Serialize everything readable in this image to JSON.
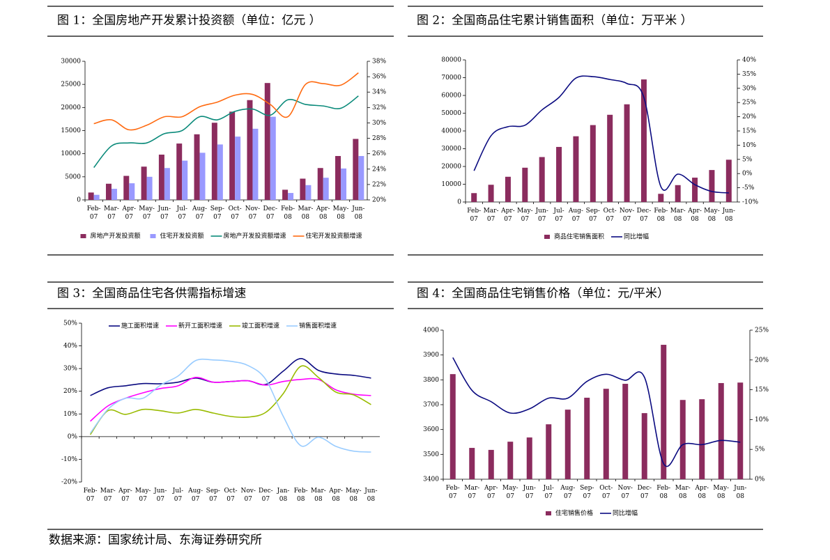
{
  "chart_data": [
    {
      "type": "combo",
      "title": "图 1：全国房地产开发累计投资额（单位：亿元 ）",
      "categories": [
        "Feb-07",
        "Mar-07",
        "Apr-07",
        "May-07",
        "Jun-07",
        "Jul-07",
        "Aug-07",
        "Sep-07",
        "Oct-07",
        "Nov-07",
        "Dec-07",
        "Feb-08",
        "Mar-08",
        "Apr-08",
        "May-08",
        "Jun-08"
      ],
      "ylim": [
        0,
        30000
      ],
      "yticks": [
        0,
        5000,
        10000,
        15000,
        20000,
        25000,
        30000
      ],
      "y2lim": [
        20,
        38
      ],
      "y2ticks": [
        {
          "value": 20,
          "label": "20%"
        },
        {
          "value": 22,
          "label": "22%"
        },
        {
          "value": 24,
          "label": "24%"
        },
        {
          "value": 26,
          "label": "26%"
        },
        {
          "value": 28,
          "label": "28%"
        },
        {
          "value": 30,
          "label": "30%"
        },
        {
          "value": 32,
          "label": "32%"
        },
        {
          "value": 34,
          "label": "34%"
        },
        {
          "value": 36,
          "label": "36%"
        },
        {
          "value": 38,
          "label": "38%"
        }
      ],
      "series": [
        {
          "name": "房地产开发投资额",
          "type": "bar",
          "color": "#8b2c5e",
          "values": [
            1600,
            3500,
            5200,
            7200,
            9800,
            12200,
            14200,
            16700,
            19100,
            21600,
            25300,
            2200,
            4600,
            6900,
            9500,
            13200
          ]
        },
        {
          "name": "住宅开发投资额",
          "type": "bar",
          "color": "#9999ff",
          "values": [
            1100,
            2400,
            3600,
            5000,
            6900,
            8500,
            10200,
            12000,
            13700,
            15400,
            18000,
            1500,
            3200,
            4800,
            6800,
            9500
          ]
        },
        {
          "name": "房地产开发投资额增速",
          "type": "line",
          "axis": "y2",
          "color": "#0a8a7a",
          "values": [
            24.2,
            27.0,
            27.4,
            27.4,
            28.6,
            29.0,
            30.8,
            30.4,
            31.5,
            31.8,
            31.0,
            33.0,
            32.4,
            32.2,
            31.9,
            33.5
          ]
        },
        {
          "name": "住宅开发投资额增速",
          "type": "line",
          "axis": "y2",
          "color": "#ff6a10",
          "values": [
            29.9,
            30.4,
            29.1,
            29.7,
            30.8,
            30.8,
            32.1,
            32.7,
            33.6,
            33.7,
            32.4,
            30.8,
            35.0,
            35.1,
            34.9,
            36.5
          ]
        }
      ]
    },
    {
      "type": "combo",
      "title": "图 2：全国商品住宅累计销售面积（单位：万平米 ）",
      "categories": [
        "Feb-07",
        "Mar-07",
        "Apr-07",
        "May-07",
        "Jun-07",
        "Jul-07",
        "Aug-07",
        "Sep-07",
        "Oct-07",
        "Nov-07",
        "Dec-07",
        "Feb-08",
        "Mar-08",
        "Apr-08",
        "May-08",
        "Jun-08"
      ],
      "ylim": [
        0,
        80000
      ],
      "yticks": [
        0,
        10000,
        20000,
        30000,
        40000,
        50000,
        60000,
        70000,
        80000
      ],
      "y2lim": [
        -10,
        40
      ],
      "y2ticks": [
        {
          "value": -10,
          "label": "-10%"
        },
        {
          "value": -5,
          "label": "-5%"
        },
        {
          "value": 0,
          "label": "0%"
        },
        {
          "value": 5,
          "label": "5%"
        },
        {
          "value": 10,
          "label": "10%"
        },
        {
          "value": 15,
          "label": "15%"
        },
        {
          "value": 20,
          "label": "20%"
        },
        {
          "value": 25,
          "label": "25%"
        },
        {
          "value": 30,
          "label": "30%"
        },
        {
          "value": 35,
          "label": "35%"
        },
        {
          "value": 40,
          "label": "40%"
        }
      ],
      "series": [
        {
          "name": "商品住宅销售面积",
          "type": "bar",
          "color": "#8b2c5e",
          "values": [
            5000,
            9700,
            14200,
            19300,
            25300,
            31000,
            37000,
            43300,
            49100,
            55000,
            69000,
            4600,
            9500,
            13700,
            18000,
            23800
          ]
        },
        {
          "name": "同比增幅",
          "type": "line",
          "axis": "y2",
          "color": "#0a0a80",
          "values": [
            1.0,
            13.3,
            16.5,
            17.0,
            22.4,
            26.8,
            33.6,
            34.1,
            33.1,
            31.7,
            26.8,
            -4.6,
            -0.2,
            -3.9,
            -6.3,
            -6.8
          ]
        }
      ]
    },
    {
      "type": "line",
      "title": "图 3：全国商品住宅各供需指标增速",
      "categories": [
        "Feb-07",
        "Mar-07",
        "Apr-07",
        "May-07",
        "Jun-07",
        "Jul-07",
        "Aug-07",
        "Sep-07",
        "Oct-07",
        "Nov-07",
        "Dec-07",
        "Jan-08",
        "Feb-08",
        "Mar-08",
        "Apr-08",
        "May-08",
        "Jun-08"
      ],
      "ylim": [
        -20,
        50
      ],
      "yticks": [
        {
          "value": -20,
          "label": "-20%"
        },
        {
          "value": -10,
          "label": "-10%"
        },
        {
          "value": 0,
          "label": "0%"
        },
        {
          "value": 10,
          "label": "10%"
        },
        {
          "value": 20,
          "label": "20%"
        },
        {
          "value": 30,
          "label": "30%"
        },
        {
          "value": 40,
          "label": "40%"
        },
        {
          "value": 50,
          "label": "50%"
        }
      ],
      "series": [
        {
          "name": "施工面积增速",
          "type": "line",
          "color": "#0a0a80",
          "values": [
            18.1,
            21.5,
            22.4,
            23.4,
            23.3,
            24.0,
            25.8,
            24.0,
            24.3,
            24.6,
            23.0,
            28.9,
            34.4,
            29.2,
            27.6,
            27.0,
            25.8
          ]
        },
        {
          "name": "新开工面积增速",
          "type": "line",
          "color": "#ff00ff",
          "values": [
            6.8,
            13.5,
            16.9,
            19.3,
            21.2,
            22.4,
            26.1,
            24.0,
            24.3,
            24.6,
            22.7,
            24.3,
            25.2,
            25.2,
            20.6,
            18.7,
            18.1
          ]
        },
        {
          "name": "竣工面积增速",
          "type": "line",
          "color": "#99bb00",
          "values": [
            0.9,
            11.4,
            9.8,
            12.0,
            11.4,
            10.4,
            12.0,
            10.4,
            8.9,
            8.6,
            10.7,
            19.0,
            31.0,
            26.1,
            19.6,
            18.4,
            14.1
          ]
        },
        {
          "name": "销售面积增速",
          "type": "line",
          "color": "#99ccff",
          "values": [
            1.5,
            12.0,
            16.9,
            16.9,
            22.7,
            26.7,
            33.5,
            33.8,
            33.2,
            31.3,
            25.2,
            8.9,
            -4.0,
            -0.3,
            -4.3,
            -6.4,
            -6.8
          ]
        }
      ]
    },
    {
      "type": "combo",
      "title": "图 4：全国商品住宅销售价格（单位：元/平米）",
      "categories": [
        "Feb-07",
        "Mar-07",
        "Apr-07",
        "May-07",
        "Jun-07",
        "Jul-07",
        "Aug-07",
        "Sep-07",
        "Oct-07",
        "Nov-07",
        "Dec-07",
        "Feb-08",
        "Mar-08",
        "Apr-08",
        "May-08",
        "Jun-08"
      ],
      "ylim": [
        3400,
        4000
      ],
      "yticks": [
        3400,
        3500,
        3600,
        3700,
        3800,
        3900,
        4000
      ],
      "y2lim": [
        0,
        25
      ],
      "y2ticks": [
        {
          "value": 0,
          "label": "0%"
        },
        {
          "value": 5,
          "label": "5%"
        },
        {
          "value": 10,
          "label": "10%"
        },
        {
          "value": 15,
          "label": "15%"
        },
        {
          "value": 20,
          "label": "20%"
        },
        {
          "value": 25,
          "label": "25%"
        }
      ],
      "series": [
        {
          "name": "住宅销售价格",
          "type": "bar",
          "color": "#8b2c5e",
          "values": [
            3823,
            3526,
            3518,
            3551,
            3568,
            3621,
            3680,
            3728,
            3764,
            3784,
            3666,
            3941,
            3719,
            3722,
            3787,
            3789
          ]
        },
        {
          "name": "同比增幅",
          "type": "line",
          "axis": "y2",
          "color": "#0a0a80",
          "values": [
            20.4,
            14.9,
            13.0,
            11.1,
            11.8,
            13.6,
            13.6,
            16.4,
            17.6,
            16.6,
            17.1,
            2.6,
            5.8,
            5.8,
            6.5,
            6.2
          ]
        }
      ]
    }
  ],
  "source": "数据来源：国家统计局、东海证券研究所"
}
